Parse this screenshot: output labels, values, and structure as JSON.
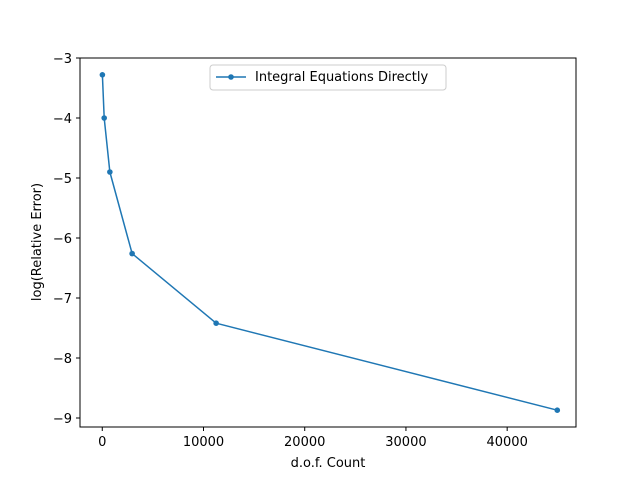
{
  "chart_data": {
    "type": "line",
    "title": "",
    "xlabel": "d.o.f. Count",
    "ylabel": "log(Relative Error)",
    "xlim": [
      -2200,
      46800
    ],
    "ylim": [
      -9.15,
      -3.0
    ],
    "xticks": [
      0,
      10000,
      20000,
      30000,
      40000
    ],
    "xtick_labels": [
      "0",
      "10000",
      "20000",
      "30000",
      "40000"
    ],
    "yticks": [
      -9,
      -8,
      -7,
      -6,
      -5,
      -4,
      -3
    ],
    "ytick_labels": [
      "−9",
      "−8",
      "−7",
      "−6",
      "−5",
      "−4",
      "−3"
    ],
    "grid": false,
    "legend_position": "top-center",
    "series": [
      {
        "name": "Integral Equations Directly",
        "color": "#1f77b4",
        "marker": "circle",
        "x": [
          12,
          190,
          750,
          2950,
          11250,
          44950
        ],
        "y": [
          -3.28,
          -4.0,
          -4.9,
          -6.26,
          -7.42,
          -8.87
        ]
      }
    ]
  }
}
